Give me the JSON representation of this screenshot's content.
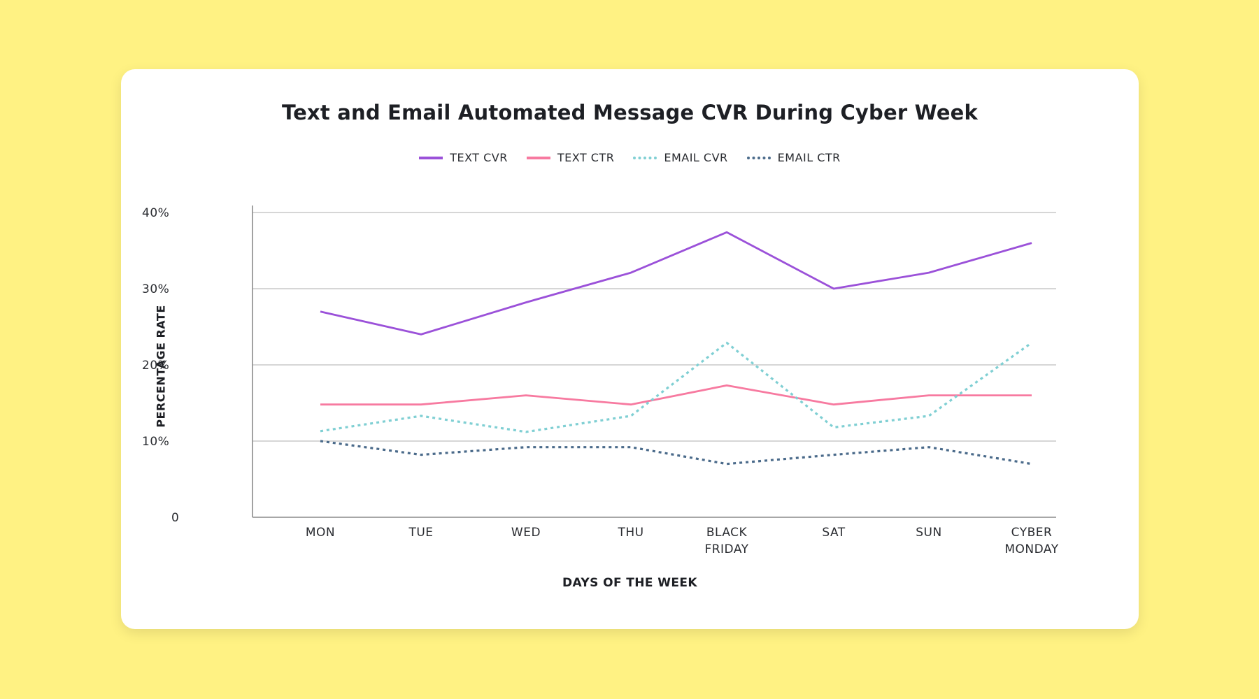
{
  "chart_data": {
    "type": "line",
    "title": "Text and Email Automated Message CVR During Cyber Week",
    "xlabel": "DAYS OF THE WEEK",
    "ylabel": "PERCENTAGE RATE",
    "categories": [
      [
        "MON"
      ],
      [
        "TUE"
      ],
      [
        "WED"
      ],
      [
        "THU"
      ],
      [
        "BLACK",
        "FRIDAY"
      ],
      [
        "SAT"
      ],
      [
        "SUN"
      ],
      [
        "CYBER",
        "MONDAY"
      ]
    ],
    "yticks": [
      {
        "value": 0,
        "label": "0"
      },
      {
        "value": 10,
        "label": "10%"
      },
      {
        "value": 20,
        "label": "20%"
      },
      {
        "value": 30,
        "label": "30%"
      },
      {
        "value": 40,
        "label": "40%"
      }
    ],
    "ylim": [
      0,
      40
    ],
    "grid": true,
    "legend_position": "top-center",
    "series": [
      {
        "name": "TEXT CVR",
        "color": "#9b51d9",
        "style": "solid",
        "values": [
          27,
          24,
          28.2,
          32.1,
          37.4,
          30,
          32.1,
          36
        ]
      },
      {
        "name": "TEXT CTR",
        "color": "#f77aa0",
        "style": "solid",
        "values": [
          14.8,
          14.8,
          16,
          14.8,
          17.3,
          14.8,
          16,
          16
        ]
      },
      {
        "name": "EMAIL CVR",
        "color": "#7fcfd3",
        "style": "dotted",
        "values": [
          11.3,
          13.3,
          11.2,
          13.3,
          22.9,
          11.8,
          13.3,
          22.9
        ]
      },
      {
        "name": "EMAIL CTR",
        "color": "#4a6a8a",
        "style": "dotted",
        "values": [
          10,
          8.2,
          9.2,
          9.2,
          7,
          8.2,
          9.2,
          7
        ]
      }
    ]
  }
}
